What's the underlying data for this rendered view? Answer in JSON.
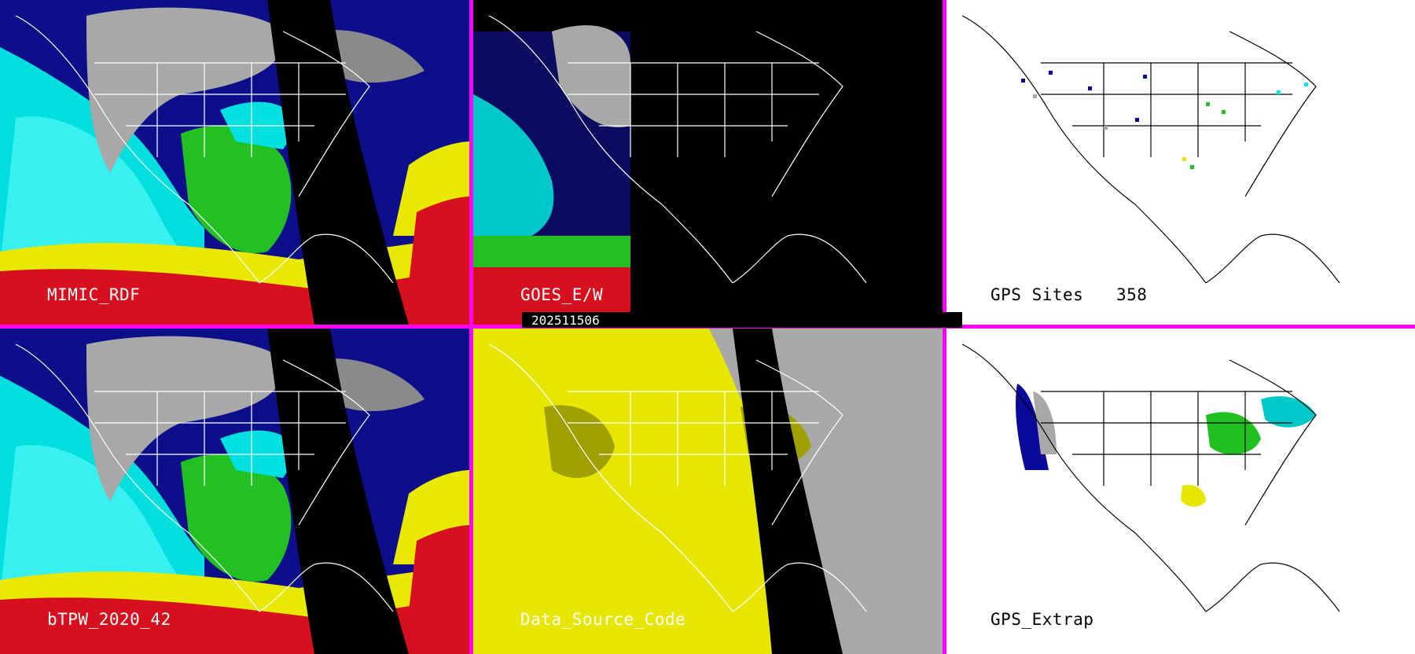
{
  "panels": [
    {
      "id": "p1",
      "label": "MIMIC_RDF",
      "style": "wv"
    },
    {
      "id": "p2",
      "label": "GOES_E/W",
      "style": "goes"
    },
    {
      "id": "p3",
      "label": "GPS Sites",
      "count": "358",
      "style": "gps"
    },
    {
      "id": "p4",
      "label": "bTPW_2020_42",
      "style": "wv"
    },
    {
      "id": "p5",
      "label": "Data_Source_Code",
      "style": "dsc"
    },
    {
      "id": "p6",
      "label": "GPS_Extrap",
      "style": "gpsx"
    }
  ],
  "timestamp": "202511506",
  "colors": {
    "separator": "#ff00ff",
    "cyan": "#00e8e8",
    "navy": "#0a0a9a",
    "green": "#20c020",
    "yellow": "#e6e600",
    "red": "#dd1020",
    "gray": "#a8a8a8",
    "olive": "#a0a000"
  }
}
